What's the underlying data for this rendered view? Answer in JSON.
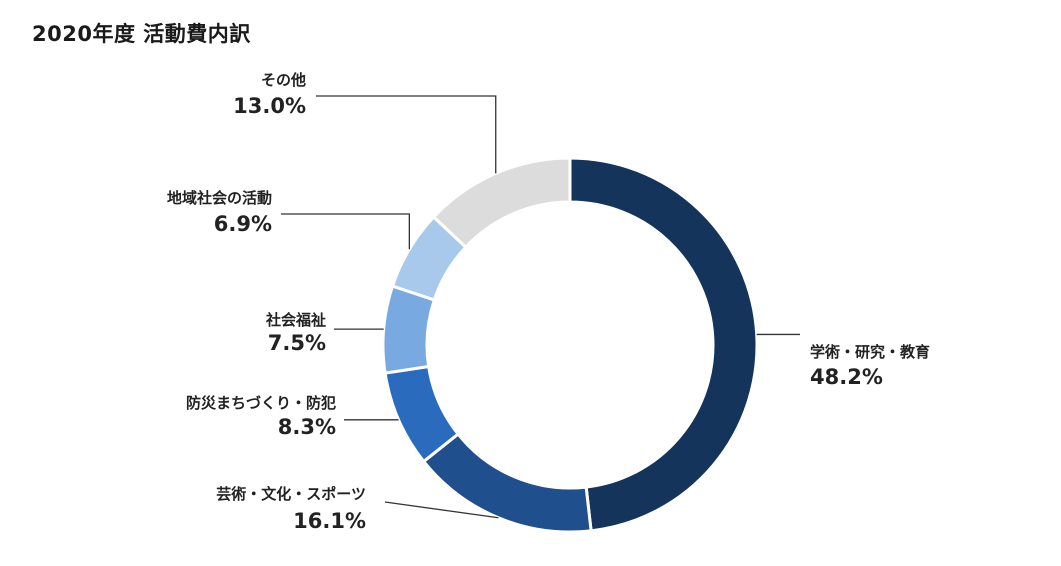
{
  "chart_data": {
    "type": "pie",
    "variant": "donut",
    "title": "2020年度 活動費内訳",
    "unit": "%",
    "slices": [
      {
        "label": "学術・研究・教育",
        "value": 48.2,
        "value_label": "48.2%",
        "color": "#14345c"
      },
      {
        "label": "芸術・文化・スポーツ",
        "value": 16.1,
        "value_label": "16.1%",
        "color": "#1f4f8c"
      },
      {
        "label": "防災まちづくり・防犯",
        "value": 8.3,
        "value_label": "8.3%",
        "color": "#2a6bbd"
      },
      {
        "label": "社会福祉",
        "value": 7.5,
        "value_label": "7.5%",
        "color": "#78a9e0"
      },
      {
        "label": "地域社会の活動",
        "value": 6.9,
        "value_label": "6.9%",
        "color": "#a8c8ec"
      },
      {
        "label": "その他",
        "value": 13.0,
        "value_label": "13.0%",
        "color": "#dcdcdc"
      }
    ],
    "start_angle": "12 o'clock",
    "direction": "clockwise",
    "legend": "none"
  }
}
